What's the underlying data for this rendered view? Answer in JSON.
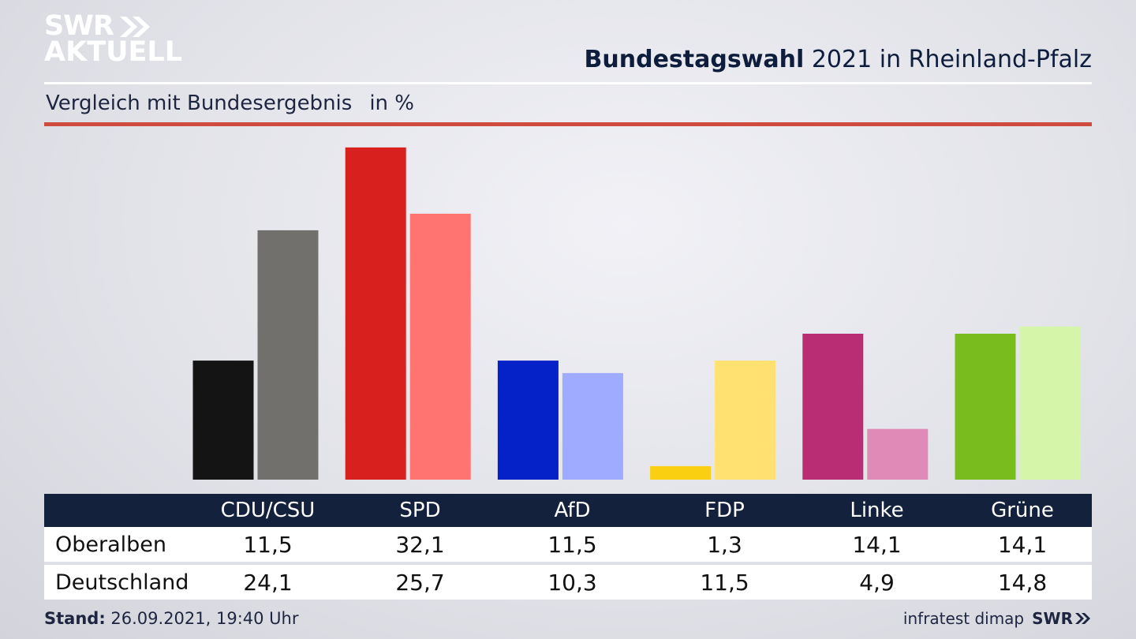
{
  "brand": {
    "logo_top": "SWR",
    "logo_bottom": "AKTUELL",
    "footer_brand": "SWR"
  },
  "header": {
    "title_bold": "Bundestagswahl",
    "title_rest": " 2021 in Rheinland-Pfalz",
    "subtitle": "Vergleich mit Bundesergebnis",
    "unit": "in %"
  },
  "footer": {
    "stand_label": "Stand:",
    "stand_value": " 26.09.2021, 19:40 Uhr",
    "source": "infratest dimap"
  },
  "table": {
    "row_labels": [
      "Oberalben",
      "Deutschland"
    ]
  },
  "colors": {
    "logo": "#ffffff",
    "header_bar": "#14213d",
    "red_rule": "#cf4b3d"
  },
  "chart_data": {
    "type": "bar",
    "title": "Bundestagswahl 2021 in Rheinland-Pfalz",
    "subtitle": "Vergleich mit Bundesergebnis",
    "ylabel": "in %",
    "ylim": [
      0,
      34
    ],
    "categories": [
      "CDU/CSU",
      "SPD",
      "AfD",
      "FDP",
      "Linke",
      "Grüne"
    ],
    "series": [
      {
        "name": "Oberalben",
        "values": [
          11.5,
          32.1,
          11.5,
          1.3,
          14.1,
          14.1
        ],
        "labels": [
          "11,5",
          "32,1",
          "11,5",
          "1,3",
          "14,1",
          "14,1"
        ],
        "colors": [
          "#141414",
          "#d8211f",
          "#0422c8",
          "#fbcf11",
          "#b82d74",
          "#78bc1d"
        ]
      },
      {
        "name": "Deutschland",
        "values": [
          24.1,
          25.7,
          10.3,
          11.5,
          4.9,
          14.8
        ],
        "labels": [
          "24,1",
          "25,7",
          "10,3",
          "11,5",
          "4,9",
          "14,8"
        ],
        "colors": [
          "#72706d",
          "#ff7470",
          "#9eabff",
          "#ffe172",
          "#e08ab8",
          "#d5f6a8"
        ]
      }
    ]
  }
}
